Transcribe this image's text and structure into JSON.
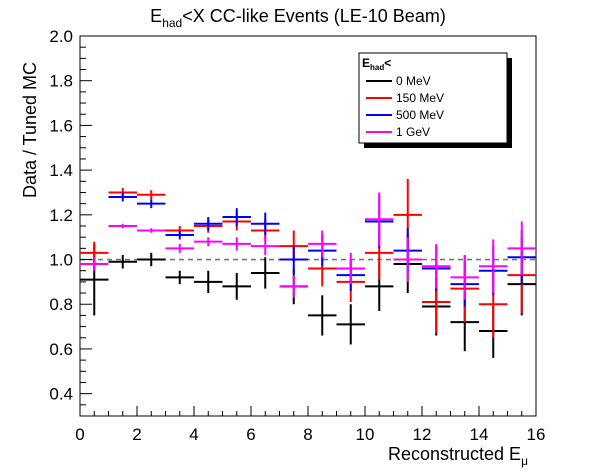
{
  "chart_data": {
    "type": "scatter",
    "title_main": "E",
    "title_sub": "had",
    "title_rest": "<X CC-like Events (LE-10 Beam)",
    "ylabel": "Data / Tuned MC",
    "xlabel_main": "Reconstructed E",
    "xlabel_sub": "μ",
    "xlim": [
      0,
      16
    ],
    "ylim": [
      0.3,
      2.0
    ],
    "xticks": [
      "0",
      "2",
      "4",
      "6",
      "8",
      "10",
      "12",
      "14",
      "16"
    ],
    "yticks": [
      "0.4",
      "0.6",
      "0.8",
      "1.0",
      "1.2",
      "1.4",
      "1.6",
      "1.8",
      "2.0"
    ],
    "reference_line": 1.0,
    "legend_title_main": "E",
    "legend_title_sub": "had",
    "legend_title_rest": "<",
    "legend_position": "top-right",
    "series": [
      {
        "name": "0 MeV",
        "color": "#000000",
        "points": [
          {
            "x": 0.5,
            "y": 0.91,
            "err": 0.16
          },
          {
            "x": 1.5,
            "y": 0.99,
            "err": 0.03
          },
          {
            "x": 2.5,
            "y": 1.0,
            "err": 0.03
          },
          {
            "x": 3.5,
            "y": 0.92,
            "err": 0.03
          },
          {
            "x": 4.5,
            "y": 0.9,
            "err": 0.05
          },
          {
            "x": 5.5,
            "y": 0.88,
            "err": 0.06
          },
          {
            "x": 6.5,
            "y": 0.94,
            "err": 0.07
          },
          {
            "x": 7.5,
            "y": 0.88,
            "err": 0.08
          },
          {
            "x": 8.5,
            "y": 0.75,
            "err": 0.09
          },
          {
            "x": 9.5,
            "y": 0.71,
            "err": 0.09
          },
          {
            "x": 10.5,
            "y": 0.88,
            "err": 0.11
          },
          {
            "x": 11.5,
            "y": 0.98,
            "err": 0.13
          },
          {
            "x": 12.5,
            "y": 0.79,
            "err": 0.13
          },
          {
            "x": 13.5,
            "y": 0.72,
            "err": 0.13
          },
          {
            "x": 14.5,
            "y": 0.68,
            "err": 0.12
          },
          {
            "x": 15.5,
            "y": 0.89,
            "err": 0.14
          }
        ]
      },
      {
        "name": "150 MeV",
        "color": "#ff0000",
        "points": [
          {
            "x": 0.5,
            "y": 1.03,
            "err": 0.05
          },
          {
            "x": 1.5,
            "y": 1.3,
            "err": 0.02
          },
          {
            "x": 2.5,
            "y": 1.29,
            "err": 0.02
          },
          {
            "x": 3.5,
            "y": 1.13,
            "err": 0.02
          },
          {
            "x": 4.5,
            "y": 1.15,
            "err": 0.03
          },
          {
            "x": 5.5,
            "y": 1.17,
            "err": 0.04
          },
          {
            "x": 6.5,
            "y": 1.13,
            "err": 0.05
          },
          {
            "x": 7.5,
            "y": 1.06,
            "err": 0.07
          },
          {
            "x": 8.5,
            "y": 0.96,
            "err": 0.08
          },
          {
            "x": 9.5,
            "y": 0.9,
            "err": 0.09
          },
          {
            "x": 10.5,
            "y": 1.03,
            "err": 0.12
          },
          {
            "x": 11.5,
            "y": 1.2,
            "err": 0.16
          },
          {
            "x": 12.5,
            "y": 0.81,
            "err": 0.14
          },
          {
            "x": 13.5,
            "y": 0.87,
            "err": 0.15
          },
          {
            "x": 14.5,
            "y": 0.8,
            "err": 0.15
          },
          {
            "x": 15.5,
            "y": 0.93,
            "err": 0.17
          }
        ]
      },
      {
        "name": "500 MeV",
        "color": "#0000ff",
        "points": [
          {
            "x": 0.5,
            "y": 0.98,
            "err": 0.03
          },
          {
            "x": 1.5,
            "y": 1.28,
            "err": 0.02
          },
          {
            "x": 2.5,
            "y": 1.25,
            "err": 0.02
          },
          {
            "x": 3.5,
            "y": 1.11,
            "err": 0.02
          },
          {
            "x": 4.5,
            "y": 1.16,
            "err": 0.03
          },
          {
            "x": 5.5,
            "y": 1.19,
            "err": 0.04
          },
          {
            "x": 6.5,
            "y": 1.16,
            "err": 0.05
          },
          {
            "x": 7.5,
            "y": 1.0,
            "err": 0.06
          },
          {
            "x": 8.5,
            "y": 1.04,
            "err": 0.07
          },
          {
            "x": 9.5,
            "y": 0.93,
            "err": 0.07
          },
          {
            "x": 10.5,
            "y": 1.17,
            "err": 0.12
          },
          {
            "x": 11.5,
            "y": 1.04,
            "err": 0.1
          },
          {
            "x": 12.5,
            "y": 0.96,
            "err": 0.1
          },
          {
            "x": 13.5,
            "y": 0.89,
            "err": 0.1
          },
          {
            "x": 14.5,
            "y": 0.95,
            "err": 0.11
          },
          {
            "x": 15.5,
            "y": 1.01,
            "err": 0.12
          }
        ]
      },
      {
        "name": "1 GeV",
        "color": "#ff00ff",
        "points": [
          {
            "x": 0.5,
            "y": 0.98,
            "err": 0.03
          },
          {
            "x": 1.5,
            "y": 1.15,
            "err": 0.01
          },
          {
            "x": 2.5,
            "y": 1.13,
            "err": 0.01
          },
          {
            "x": 3.5,
            "y": 1.05,
            "err": 0.02
          },
          {
            "x": 4.5,
            "y": 1.08,
            "err": 0.02
          },
          {
            "x": 5.5,
            "y": 1.07,
            "err": 0.03
          },
          {
            "x": 6.5,
            "y": 1.06,
            "err": 0.04
          },
          {
            "x": 7.5,
            "y": 0.88,
            "err": 0.05
          },
          {
            "x": 8.5,
            "y": 1.07,
            "err": 0.06
          },
          {
            "x": 9.5,
            "y": 0.96,
            "err": 0.07
          },
          {
            "x": 10.5,
            "y": 1.18,
            "err": 0.12
          },
          {
            "x": 11.5,
            "y": 1.0,
            "err": 0.1
          },
          {
            "x": 12.5,
            "y": 0.97,
            "err": 0.1
          },
          {
            "x": 13.5,
            "y": 0.92,
            "err": 0.1
          },
          {
            "x": 14.5,
            "y": 0.97,
            "err": 0.12
          },
          {
            "x": 15.5,
            "y": 1.05,
            "err": 0.12
          }
        ]
      }
    ]
  }
}
